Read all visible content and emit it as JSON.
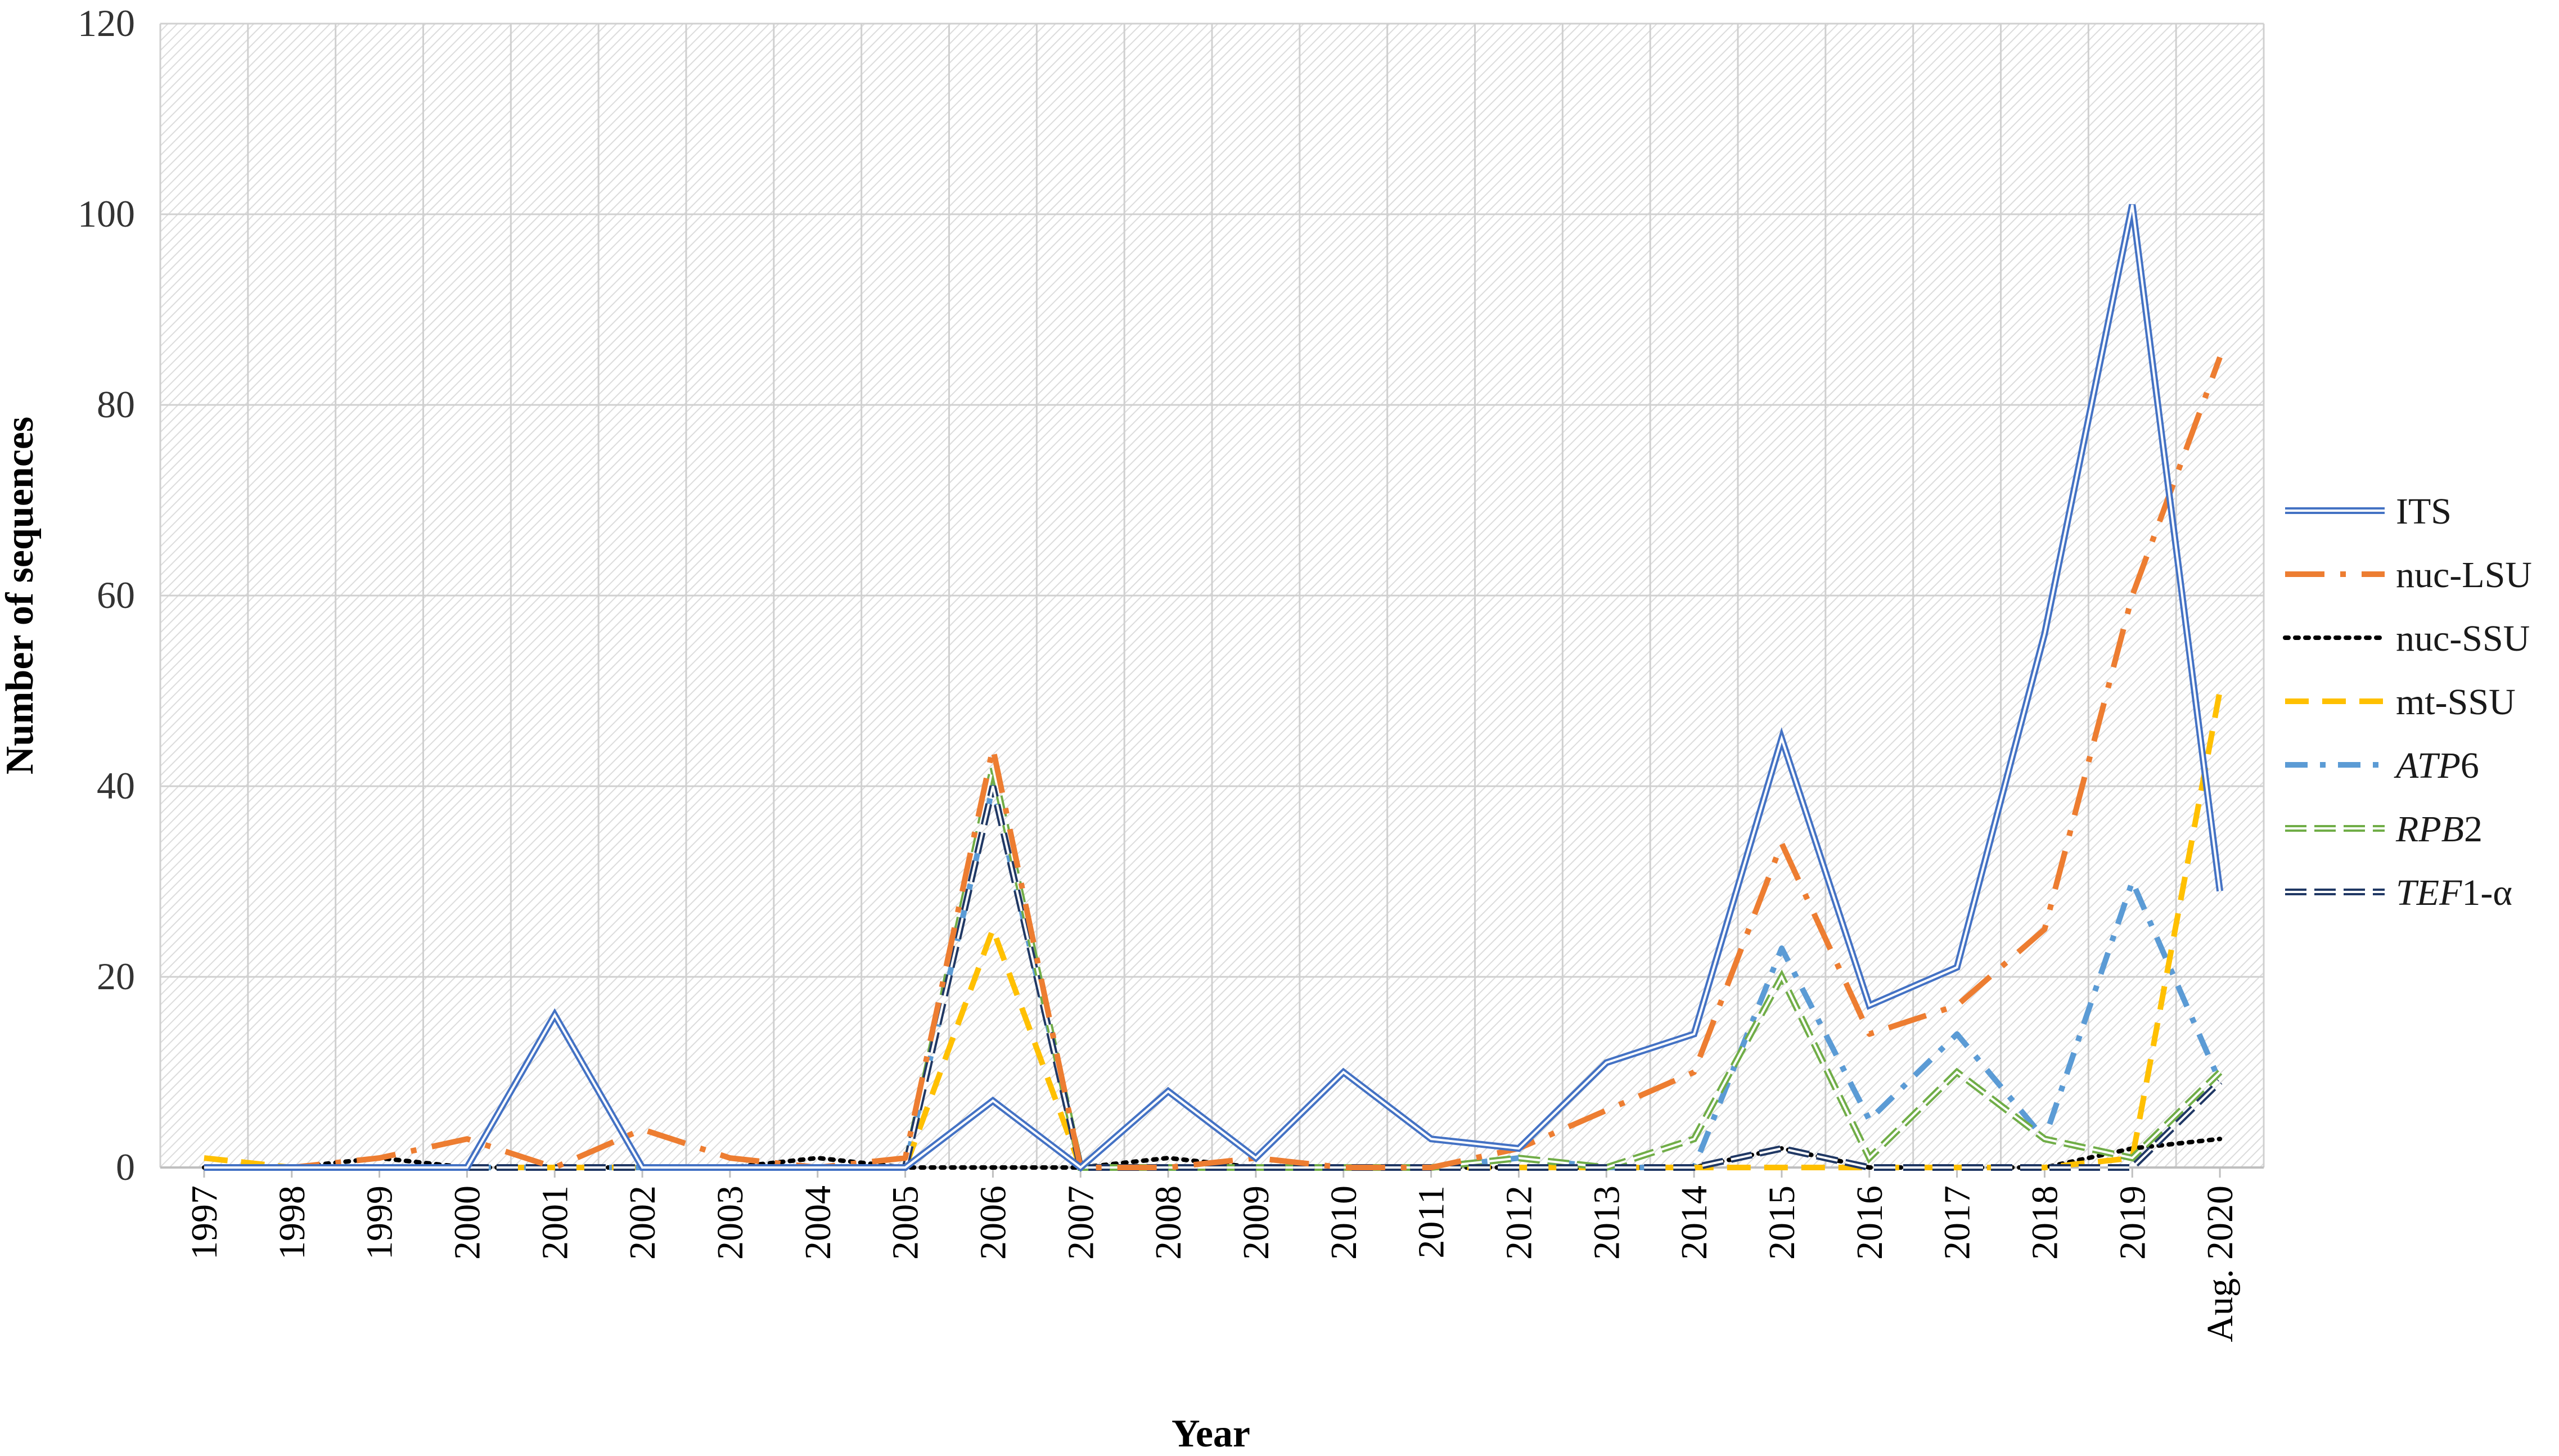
{
  "chart_data": {
    "type": "line",
    "title": "",
    "xlabel": "Year",
    "ylabel": "Number of sequences",
    "ylim": [
      0,
      120
    ],
    "yticks": [
      "0",
      "20",
      "40",
      "60",
      "80",
      "100",
      "120"
    ],
    "grid": true,
    "legend_position": "right",
    "categories": [
      "1997",
      "1998",
      "1999",
      "2000",
      "2001",
      "2002",
      "2003",
      "2004",
      "2005",
      "2006",
      "2007",
      "2008",
      "2009",
      "2010",
      "2011",
      "2012",
      "2013",
      "2014",
      "2015",
      "2016",
      "2017",
      "2018",
      "2019",
      "Aug. 2020"
    ],
    "series": [
      {
        "name": "ITS",
        "italic_part": "",
        "plain_part": "ITS",
        "style": "double",
        "color": "#4472C4",
        "values": [
          0,
          0,
          0,
          0,
          16,
          0,
          0,
          0,
          0,
          7,
          0,
          8,
          1,
          10,
          3,
          2,
          11,
          14,
          45,
          17,
          21,
          56,
          101,
          29
        ]
      },
      {
        "name": "nuc-LSU",
        "italic_part": "",
        "plain_part": "nuc-LSU",
        "style": "dashdot-long",
        "color": "#ED7D31",
        "values": [
          0,
          0,
          1,
          3,
          0,
          4,
          1,
          0,
          1,
          44,
          0,
          0,
          1,
          0,
          0,
          2,
          6,
          10,
          34,
          14,
          17,
          25,
          60,
          85
        ]
      },
      {
        "name": "nuc-SSU",
        "italic_part": "",
        "plain_part": "nuc-SSU",
        "style": "dotted",
        "color": "#000000",
        "values": [
          0,
          0,
          1,
          0,
          0,
          0,
          0,
          1,
          0,
          0,
          0,
          1,
          0,
          0,
          0,
          0,
          0,
          0,
          2,
          0,
          0,
          0,
          2,
          3
        ]
      },
      {
        "name": "mt-SSU",
        "italic_part": "",
        "plain_part": "mt-SSU",
        "style": "dashed",
        "color": "#FFC000",
        "values": [
          1,
          0,
          0,
          0,
          0,
          0,
          0,
          0,
          0,
          25,
          0,
          0,
          0,
          0,
          0,
          0,
          0,
          0,
          0,
          0,
          0,
          0,
          1,
          50
        ]
      },
      {
        "name": "ATP6",
        "italic_part": "ATP",
        "plain_part": "6",
        "style": "dashdot",
        "color": "#5B9BD5",
        "values": [
          0,
          0,
          0,
          0,
          0,
          0,
          0,
          0,
          0,
          40,
          0,
          0,
          0,
          0,
          0,
          1,
          0,
          0,
          23,
          5,
          14,
          3,
          30,
          9
        ]
      },
      {
        "name": "RPB2",
        "italic_part": "RPB",
        "plain_part": "2",
        "style": "double-dashed",
        "color": "#70AD47",
        "values": [
          0,
          0,
          0,
          0,
          0,
          0,
          0,
          0,
          0,
          42,
          0,
          0,
          0,
          0,
          0,
          1,
          0,
          3,
          20,
          1,
          10,
          3,
          1,
          10
        ]
      },
      {
        "name": "TEF1-α",
        "italic_part": "TEF",
        "plain_part": "1-α",
        "style": "double-dashed",
        "color": "#203864",
        "values": [
          0,
          0,
          0,
          0,
          0,
          0,
          0,
          0,
          0,
          40,
          0,
          0,
          0,
          0,
          0,
          0,
          0,
          0,
          2,
          0,
          0,
          0,
          0,
          9
        ]
      }
    ]
  }
}
